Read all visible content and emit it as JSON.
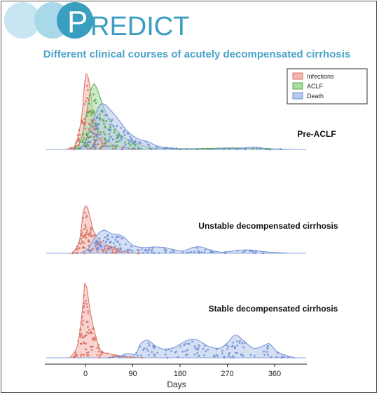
{
  "logo": {
    "text": "REDICT",
    "color": "#3a9ec0",
    "circle_color": "#bfe3ef"
  },
  "chart_data": {
    "type": "ridgeline-density",
    "title": "Different clinical courses of acutely decompensated cirrhosis",
    "title_color": "#4aa3c8",
    "xlabel": "Days",
    "x_ticks": [
      0,
      90,
      180,
      270,
      360
    ],
    "xlim": [
      -75,
      420
    ],
    "legend": {
      "position": "top-right",
      "entries": [
        {
          "label": "Infections",
          "color": "#f2b8b0",
          "edge": "#d97060"
        },
        {
          "label": "ACLF",
          "color": "#a8dca0",
          "edge": "#55a84c"
        },
        {
          "label": "Death",
          "color": "#b9c9ec",
          "edge": "#6e8fd6"
        }
      ]
    },
    "groups": [
      {
        "label": "Pre-ACLF",
        "series": {
          "Infections": [
            [
              -40,
              0
            ],
            [
              -20,
              0.05
            ],
            [
              -8,
              0.4
            ],
            [
              -2,
              0.85
            ],
            [
              2,
              1.0
            ],
            [
              8,
              0.85
            ],
            [
              15,
              0.5
            ],
            [
              25,
              0.28
            ],
            [
              40,
              0.12
            ],
            [
              60,
              0.05
            ],
            [
              80,
              0.02
            ],
            [
              100,
              0
            ]
          ],
          "ACLF": [
            [
              -25,
              0
            ],
            [
              -10,
              0.1
            ],
            [
              0,
              0.4
            ],
            [
              8,
              0.72
            ],
            [
              15,
              0.86
            ],
            [
              22,
              0.8
            ],
            [
              35,
              0.55
            ],
            [
              50,
              0.34
            ],
            [
              70,
              0.18
            ],
            [
              90,
              0.1
            ],
            [
              110,
              0.05
            ],
            [
              130,
              0.02
            ],
            [
              200,
              0.01
            ],
            [
              280,
              0.02
            ],
            [
              320,
              0.015
            ],
            [
              380,
              0
            ]
          ],
          "Death": [
            [
              -30,
              0
            ],
            [
              -5,
              0.05
            ],
            [
              10,
              0.3
            ],
            [
              25,
              0.56
            ],
            [
              35,
              0.6
            ],
            [
              45,
              0.54
            ],
            [
              60,
              0.42
            ],
            [
              80,
              0.24
            ],
            [
              100,
              0.14
            ],
            [
              120,
              0.1
            ],
            [
              140,
              0.04
            ],
            [
              180,
              0.01
            ],
            [
              240,
              0.005
            ],
            [
              270,
              0.02
            ],
            [
              290,
              0.01
            ],
            [
              320,
              0.03
            ],
            [
              350,
              0.01
            ],
            [
              400,
              0
            ]
          ]
        }
      },
      {
        "label": "Unstable decompensated cirrhosis",
        "series": {
          "Infections": [
            [
              -25,
              0
            ],
            [
              -12,
              0.2
            ],
            [
              -4,
              0.72
            ],
            [
              2,
              0.82
            ],
            [
              8,
              0.66
            ],
            [
              16,
              0.38
            ],
            [
              30,
              0.2
            ],
            [
              50,
              0.12
            ],
            [
              70,
              0.05
            ],
            [
              90,
              0.01
            ],
            [
              110,
              0
            ]
          ],
          "Death": [
            [
              -10,
              0
            ],
            [
              5,
              0.08
            ],
            [
              20,
              0.3
            ],
            [
              35,
              0.4
            ],
            [
              50,
              0.34
            ],
            [
              70,
              0.3
            ],
            [
              90,
              0.14
            ],
            [
              110,
              0.1
            ],
            [
              130,
              0.11
            ],
            [
              150,
              0.1
            ],
            [
              170,
              0.06
            ],
            [
              185,
              0.04
            ],
            [
              205,
              0.1
            ],
            [
              220,
              0.11
            ],
            [
              240,
              0.05
            ],
            [
              260,
              0.02
            ],
            [
              290,
              0.05
            ],
            [
              310,
              0.06
            ],
            [
              330,
              0.04
            ],
            [
              350,
              0.02
            ],
            [
              390,
              0
            ]
          ]
        }
      },
      {
        "label": "Stable decompensated cirrhosis",
        "series": {
          "Infections": [
            [
              -30,
              0
            ],
            [
              -15,
              0.15
            ],
            [
              -5,
              0.6
            ],
            [
              -2,
              0.82
            ],
            [
              0,
              0.84
            ],
            [
              3,
              0.78
            ],
            [
              10,
              0.5
            ],
            [
              20,
              0.24
            ],
            [
              30,
              0.08
            ],
            [
              50,
              0.04
            ],
            [
              70,
              0.02
            ],
            [
              90,
              0.01
            ],
            [
              110,
              0
            ]
          ],
          "Death": [
            [
              40,
              0
            ],
            [
              65,
              0.02
            ],
            [
              80,
              0.05
            ],
            [
              95,
              0.04
            ],
            [
              105,
              0.16
            ],
            [
              118,
              0.2
            ],
            [
              135,
              0.13
            ],
            [
              150,
              0.1
            ],
            [
              170,
              0.12
            ],
            [
              190,
              0.19
            ],
            [
              210,
              0.21
            ],
            [
              235,
              0.13
            ],
            [
              255,
              0.11
            ],
            [
              270,
              0.17
            ],
            [
              285,
              0.26
            ],
            [
              300,
              0.2
            ],
            [
              320,
              0.11
            ],
            [
              340,
              0.14
            ],
            [
              350,
              0.16
            ],
            [
              365,
              0.07
            ],
            [
              385,
              0.02
            ],
            [
              400,
              0
            ]
          ]
        }
      }
    ]
  }
}
